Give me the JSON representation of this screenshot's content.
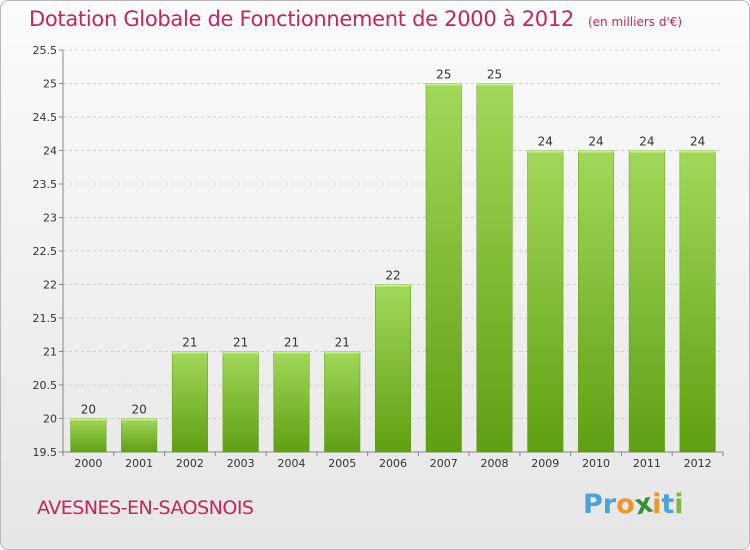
{
  "header": {
    "title": "Dotation Globale de Fonctionnement de 2000 à 2012",
    "subtitle": "(en milliers d'€)"
  },
  "commune": "AVESNES-EN-SAOSNOIS",
  "logo": {
    "letters": [
      "P",
      "r",
      "o",
      "x",
      "i",
      "t",
      "i"
    ],
    "colors": [
      "#4ba3d9",
      "#4ba3d9",
      "#f0952a",
      "#3a8f3a",
      "#f0952a",
      "#4ba3d9",
      "#7cb942"
    ]
  },
  "chart_data": {
    "type": "bar",
    "categories": [
      "2000",
      "2001",
      "2002",
      "2003",
      "2004",
      "2005",
      "2006",
      "2007",
      "2008",
      "2009",
      "2010",
      "2011",
      "2012"
    ],
    "values": [
      20,
      20,
      21,
      21,
      21,
      21,
      22,
      25,
      25,
      24,
      24,
      24,
      24
    ],
    "data_labels": [
      "20",
      "20",
      "21",
      "21",
      "21",
      "21",
      "22",
      "25",
      "25",
      "24",
      "24",
      "24",
      "24"
    ],
    "title": "Dotation Globale de Fonctionnement de 2000 à 2012",
    "subtitle": "(en milliers d'€)",
    "ylim": [
      19.5,
      25.5
    ],
    "yticks": [
      "19.5",
      "20",
      "20.5",
      "21",
      "21.5",
      "22",
      "22.5",
      "23",
      "23.5",
      "24",
      "24.5",
      "25",
      "25.5"
    ],
    "grid": true,
    "bar_color": "#7cb82e",
    "bar_color_light": "#a2d85a",
    "bar_color_dark": "#5f9f12"
  }
}
